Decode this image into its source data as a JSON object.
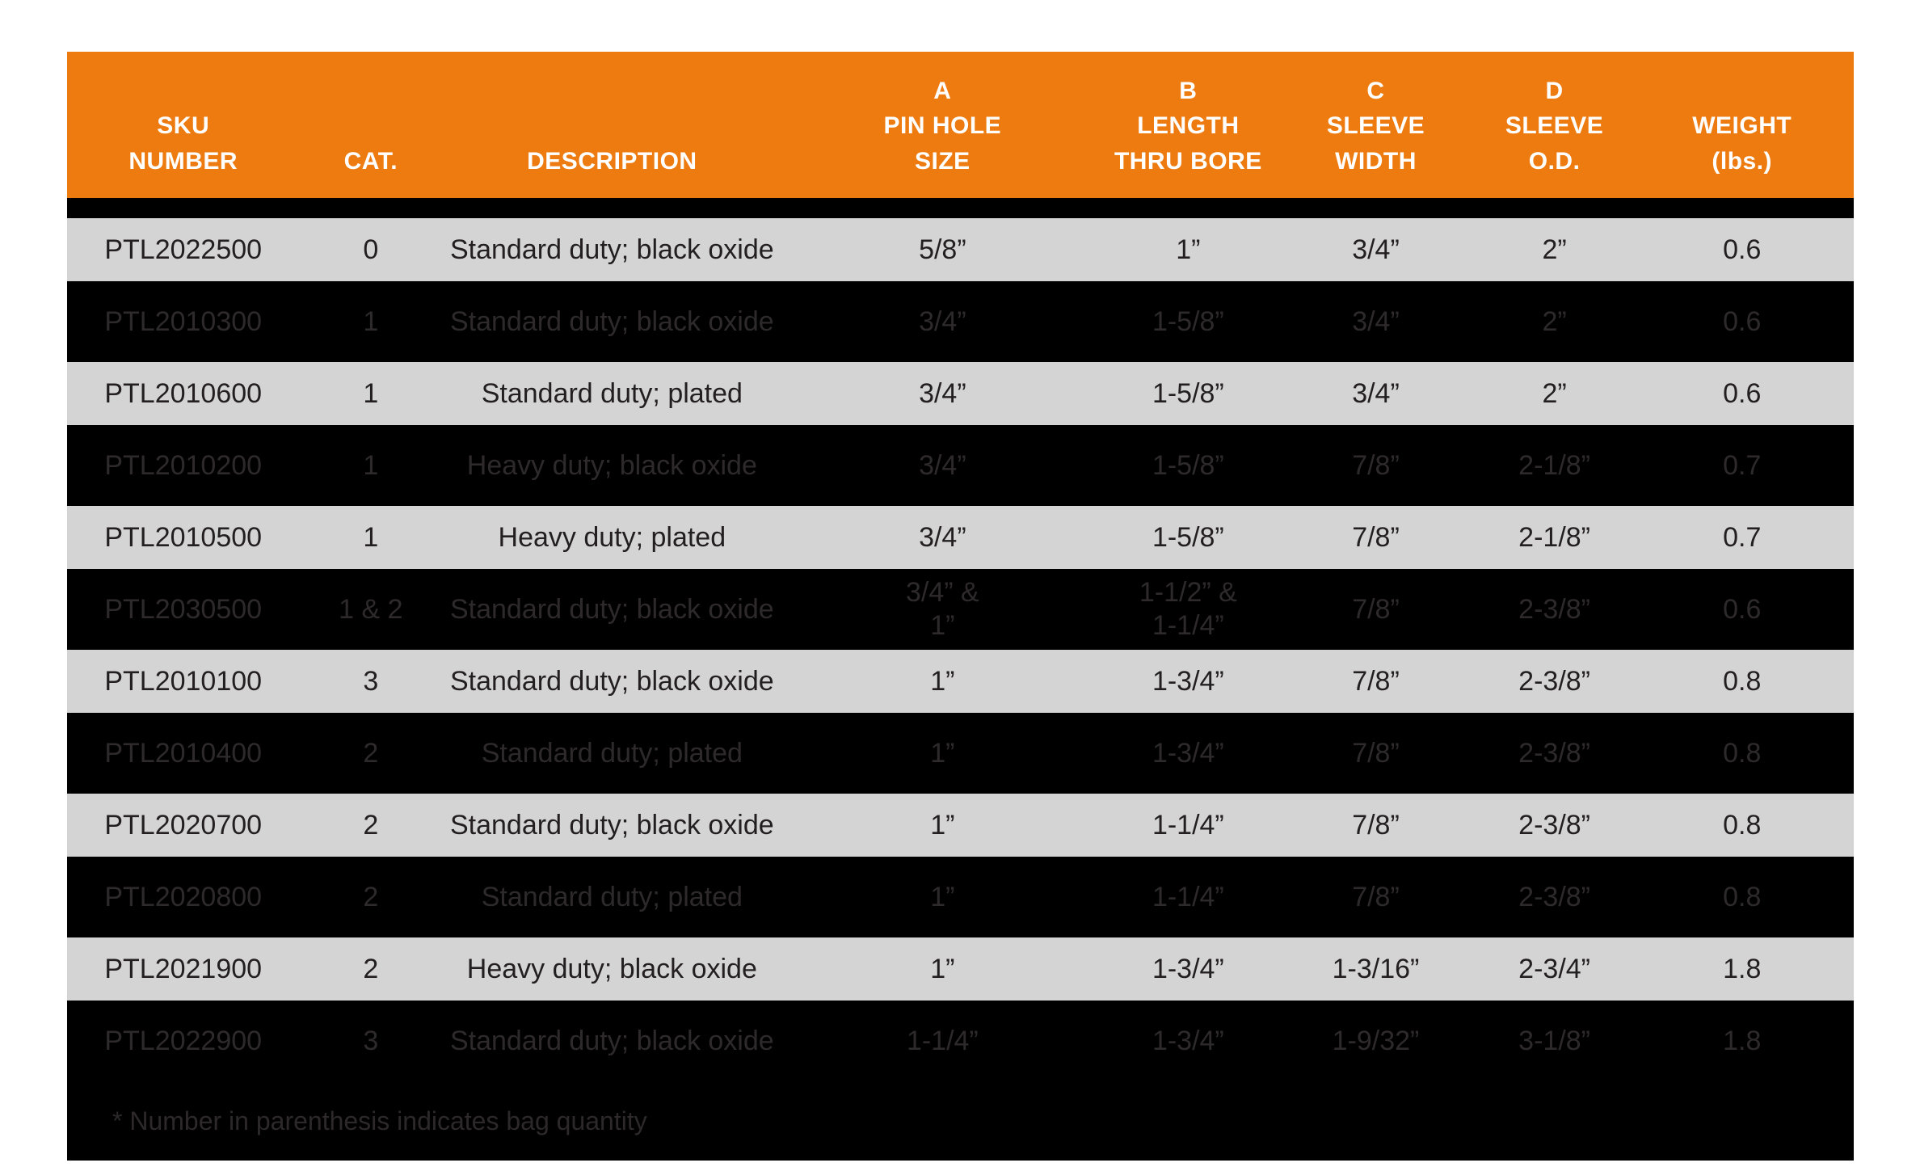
{
  "table": {
    "header": {
      "columns": [
        {
          "id": "sku",
          "label": "SKU\nNUMBER"
        },
        {
          "id": "cat",
          "label": "CAT."
        },
        {
          "id": "description",
          "label": "DESCRIPTION"
        },
        {
          "id": "a",
          "label": "A\nPIN HOLE\nSIZE"
        },
        {
          "id": "b",
          "label": "B\nLENGTH\nTHRU BORE"
        },
        {
          "id": "c",
          "label": "C\nSLEEVE\nWIDTH"
        },
        {
          "id": "d",
          "label": "D\nSLEEVE\nO.D."
        },
        {
          "id": "weight",
          "label": "WEIGHT\n(lbs.)"
        }
      ]
    },
    "rows": [
      {
        "variant": "light",
        "sku": "PTL2022500",
        "cat": "0",
        "description": "Standard duty; black oxide",
        "a": "5/8”",
        "b": "1”",
        "c": "3/4”",
        "d": "2”",
        "weight": "0.6"
      },
      {
        "variant": "dark",
        "sku": "PTL2010300",
        "cat": "1",
        "description": "Standard duty; black oxide",
        "a": "3/4”",
        "b": "1-5/8”",
        "c": "3/4”",
        "d": "2”",
        "weight": "0.6"
      },
      {
        "variant": "light",
        "sku": "PTL2010600",
        "cat": "1",
        "description": "Standard duty; plated",
        "a": "3/4”",
        "b": "1-5/8”",
        "c": "3/4”",
        "d": "2”",
        "weight": "0.6"
      },
      {
        "variant": "dark",
        "sku": "PTL2010200",
        "cat": "1",
        "description": "Heavy duty; black oxide",
        "a": "3/4”",
        "b": "1-5/8”",
        "c": "7/8”",
        "d": "2-1/8”",
        "weight": "0.7"
      },
      {
        "variant": "light",
        "sku": "PTL2010500",
        "cat": "1",
        "description": "Heavy duty; plated",
        "a": "3/4”",
        "b": "1-5/8”",
        "c": "7/8”",
        "d": "2-1/8”",
        "weight": "0.7"
      },
      {
        "variant": "dark",
        "sku": "PTL2030500",
        "cat": "1 & 2",
        "description": "Standard duty; black oxide",
        "a": "3/4” &\n1”",
        "b": "1-1/2” &\n1-1/4”",
        "c": "7/8”",
        "d": "2-3/8”",
        "weight": "0.6"
      },
      {
        "variant": "light",
        "sku": "PTL2010100",
        "cat": "3",
        "description": "Standard duty; black oxide",
        "a": "1”",
        "b": "1-3/4”",
        "c": "7/8”",
        "d": "2-3/8”",
        "weight": "0.8"
      },
      {
        "variant": "dark",
        "sku": "PTL2010400",
        "cat": "2",
        "description": "Standard duty; plated",
        "a": "1”",
        "b": "1-3/4”",
        "c": "7/8”",
        "d": "2-3/8”",
        "weight": "0.8"
      },
      {
        "variant": "light",
        "sku": "PTL2020700",
        "cat": "2",
        "description": "Standard duty; black oxide",
        "a": "1”",
        "b": "1-1/4”",
        "c": "7/8”",
        "d": "2-3/8”",
        "weight": "0.8"
      },
      {
        "variant": "dark",
        "sku": "PTL2020800",
        "cat": "2",
        "description": "Standard duty; plated",
        "a": "1”",
        "b": "1-1/4”",
        "c": "7/8”",
        "d": "2-3/8”",
        "weight": "0.8"
      },
      {
        "variant": "light",
        "sku": "PTL2021900",
        "cat": "2",
        "description": "Heavy duty; black oxide",
        "a": "1”",
        "b": "1-3/4”",
        "c": "1-3/16”",
        "d": "2-3/4”",
        "weight": "1.8"
      },
      {
        "variant": "dark",
        "sku": "PTL2022900",
        "cat": "3",
        "description": "Standard duty; black oxide",
        "a": "1-1/4”",
        "b": "1-3/4”",
        "c": "1-9/32”",
        "d": "3-1/8”",
        "weight": "1.8"
      }
    ],
    "footnote": "* Number in parenthesis indicates bag quantity",
    "colors": {
      "header_bg": "#EE7B10",
      "header_text": "#FFFFFF",
      "light_row_bg": "#D4D4D4",
      "light_row_text": "#231F20",
      "dark_row_bg": "#000000",
      "dark_row_text": "#2E2A2B",
      "footnote_text": "#2D292A",
      "page_bg": "#FFFFFF"
    }
  }
}
